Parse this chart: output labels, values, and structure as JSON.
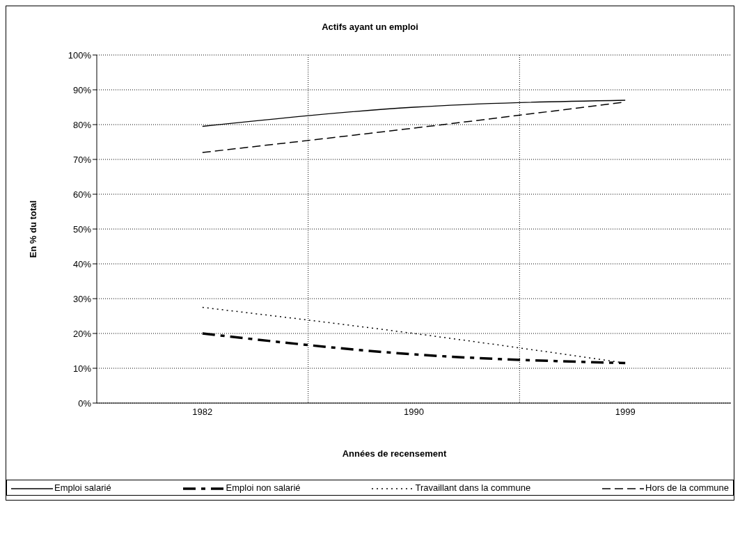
{
  "chart_data": {
    "type": "line",
    "title": "Actifs ayant un emploi",
    "xlabel": "Années de recensement",
    "ylabel": "En % du total",
    "categories": [
      "1982",
      "1990",
      "1999"
    ],
    "series": [
      {
        "name": "Emploi salarié",
        "color": "#000000",
        "line_style": "solid",
        "values": [
          79.5,
          85,
          87
        ]
      },
      {
        "name": "Emploi non salarié",
        "color": "#000000",
        "line_style": "dashdot",
        "values": [
          20,
          14,
          11.5
        ]
      },
      {
        "name": "Travaillant dans la commune",
        "color": "#000000",
        "line_style": "dotted",
        "values": [
          27.5,
          20,
          11.5
        ]
      },
      {
        "name": "Hors de la commune",
        "color": "#000000",
        "line_style": "dashed",
        "values": [
          72,
          79,
          86.5
        ]
      }
    ],
    "ylim": [
      0,
      100
    ],
    "yticks": [
      {
        "value": 0,
        "label": "0%"
      },
      {
        "value": 10,
        "label": "10%"
      },
      {
        "value": 20,
        "label": "20%"
      },
      {
        "value": 30,
        "label": "30%"
      },
      {
        "value": 40,
        "label": "40%"
      },
      {
        "value": 50,
        "label": "50%"
      },
      {
        "value": 60,
        "label": "60%"
      },
      {
        "value": 70,
        "label": "70%"
      },
      {
        "value": 80,
        "label": "80%"
      },
      {
        "value": 90,
        "label": "90%"
      },
      {
        "value": 100,
        "label": "100%"
      }
    ],
    "grid": true,
    "legend": "bottom",
    "marker": "none"
  }
}
